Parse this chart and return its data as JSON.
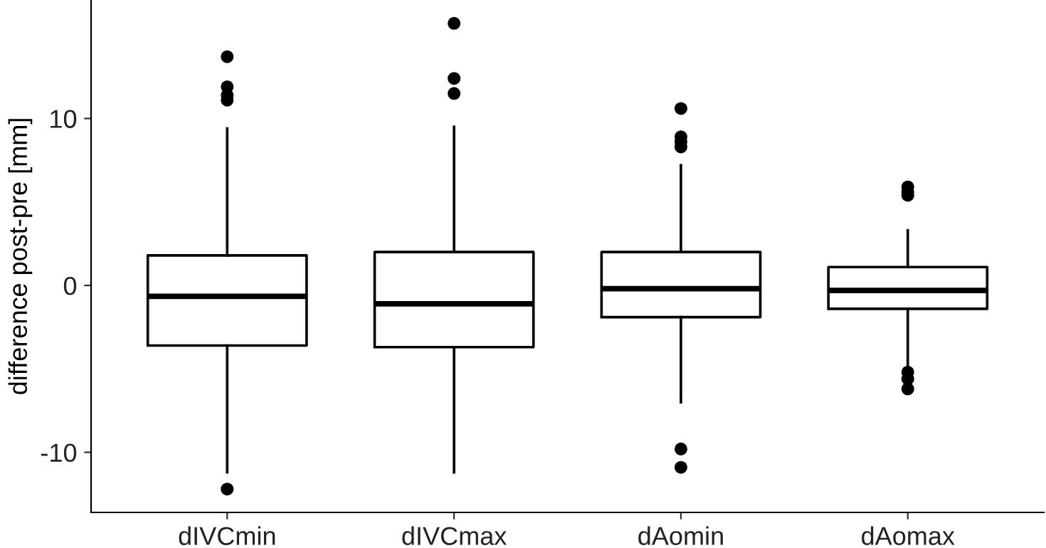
{
  "chart_data": {
    "type": "box",
    "ylabel": "difference post-pre [mm]",
    "categories": [
      "dIVCmin",
      "dIVCmax",
      "dAomin",
      "dAomax"
    ],
    "boxes": [
      {
        "low": -11.2,
        "q1": -3.6,
        "median": -0.65,
        "q3": 1.8,
        "high": 9.4,
        "outliers": [
          13.7,
          11.9,
          11.4,
          11.1,
          -12.2
        ]
      },
      {
        "low": -11.2,
        "q1": -3.7,
        "median": -1.1,
        "q3": 2.0,
        "high": 9.5,
        "outliers": [
          15.7,
          12.4,
          11.5
        ]
      },
      {
        "low": -7.0,
        "q1": -1.9,
        "median": -0.2,
        "q3": 2.0,
        "high": 7.2,
        "outliers": [
          10.6,
          8.9,
          8.6,
          8.3,
          -9.8,
          -10.9
        ]
      },
      {
        "low": -4.8,
        "q1": -1.4,
        "median": -0.3,
        "q3": 1.1,
        "high": 3.3,
        "outliers": [
          5.9,
          5.6,
          5.4,
          -5.2,
          -5.6,
          -6.2
        ]
      }
    ],
    "color": "#000000",
    "ylim": [
      -13.6,
      17.1
    ],
    "yticks": [
      10,
      0,
      -10
    ],
    "grid": false,
    "legend": false
  }
}
